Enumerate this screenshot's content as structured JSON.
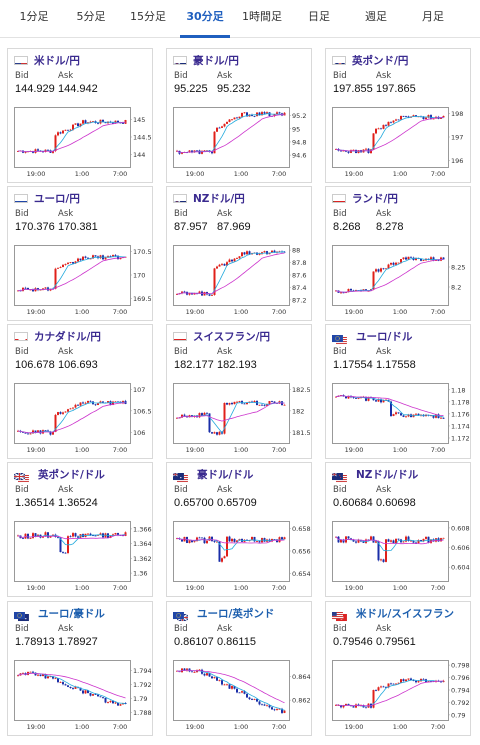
{
  "tabs": [
    {
      "label": "1分足",
      "active": false
    },
    {
      "label": "5分足",
      "active": false
    },
    {
      "label": "15分足",
      "active": false
    },
    {
      "label": "30分足",
      "active": true
    },
    {
      "label": "1時間足",
      "active": false
    },
    {
      "label": "日足",
      "active": false
    },
    {
      "label": "週足",
      "active": false
    },
    {
      "label": "月足",
      "active": false
    }
  ],
  "labels": {
    "bid": "Bid",
    "ask": "Ask"
  },
  "x_ticks": [
    "19:00",
    "1:00",
    "7:00"
  ],
  "cards": [
    {
      "pair": "米ドル/円",
      "flag": "us",
      "bid": "144.929",
      "ask": "144.942",
      "ticks": [
        "145",
        "144.5",
        "144"
      ],
      "range": [
        143.7,
        145.3
      ],
      "base": 144.1,
      "last": 144.93,
      "trend": "jump_up",
      "color": "purple"
    },
    {
      "pair": "豪ドル/円",
      "flag": "au",
      "bid": "95.225",
      "ask": "95.232",
      "ticks": [
        "95.2",
        "95",
        "94.8",
        "94.6"
      ],
      "range": [
        94.45,
        95.3
      ],
      "base": 94.65,
      "last": 95.22,
      "trend": "jump_up",
      "color": "purple"
    },
    {
      "pair": "英ポンド/円",
      "flag": "gb",
      "bid": "197.855",
      "ask": "197.865",
      "ticks": [
        "198",
        "197",
        "196"
      ],
      "range": [
        195.8,
        198.2
      ],
      "base": 196.4,
      "last": 197.86,
      "trend": "jump_up",
      "color": "purple"
    },
    {
      "pair": "ユーロ/円",
      "flag": "eu",
      "bid": "170.376",
      "ask": "170.381",
      "ticks": [
        "170.5",
        "170",
        "169.5"
      ],
      "range": [
        169.4,
        170.6
      ],
      "base": 169.7,
      "last": 170.38,
      "trend": "jump_up",
      "color": "purple"
    },
    {
      "pair": "NZドル/円",
      "flag": "nz",
      "bid": "87.957",
      "ask": "87.969",
      "ticks": [
        "88",
        "87.8",
        "87.6",
        "87.4",
        "87.2"
      ],
      "range": [
        87.15,
        88.05
      ],
      "base": 87.3,
      "last": 87.96,
      "trend": "jump_up",
      "color": "purple"
    },
    {
      "pair": "ランド/円",
      "flag": "za",
      "bid": "8.268",
      "ask": "8.278",
      "ticks": [
        "8.25",
        "8.2"
      ],
      "range": [
        8.16,
        8.3
      ],
      "base": 8.19,
      "last": 8.27,
      "trend": "jump_up",
      "color": "purple"
    },
    {
      "pair": "カナダドル/円",
      "flag": "ca",
      "bid": "106.678",
      "ask": "106.693",
      "ticks": [
        "107",
        "106.5",
        "106"
      ],
      "range": [
        105.8,
        107.1
      ],
      "base": 106.0,
      "last": 106.68,
      "trend": "jump_up",
      "color": "purple"
    },
    {
      "pair": "スイスフラン/円",
      "flag": "ch",
      "bid": "182.177",
      "ask": "182.193",
      "ticks": [
        "182.5",
        "182",
        "181.5"
      ],
      "range": [
        181.3,
        182.6
      ],
      "base": 181.7,
      "last": 182.18,
      "trend": "dip_up",
      "color": "purple"
    },
    {
      "pair": "ユーロ/ドル",
      "flag": "eu_us",
      "bid": "1.17554",
      "ask": "1.17558",
      "ticks": [
        "1.18",
        "1.178",
        "1.176",
        "1.174",
        "1.172"
      ],
      "range": [
        1.1715,
        1.1808
      ],
      "base": 1.179,
      "last": 1.1755,
      "trend": "jump_down",
      "color": "purple"
    },
    {
      "pair": "英ポンド/ドル",
      "flag": "gb_us",
      "bid": "1.36514",
      "ask": "1.36524",
      "ticks": [
        "1.366",
        "1.364",
        "1.362",
        "1.36"
      ],
      "range": [
        1.3592,
        1.3668
      ],
      "base": 1.3645,
      "last": 1.3651,
      "trend": "flat_dip",
      "color": "purple"
    },
    {
      "pair": "豪ドル/ドル",
      "flag": "au_us",
      "bid": "0.65700",
      "ask": "0.65709",
      "ticks": [
        "0.658",
        "0.656",
        "0.654"
      ],
      "range": [
        0.6535,
        0.6585
      ],
      "base": 0.6575,
      "last": 0.657,
      "trend": "flat_dip",
      "color": "purple"
    },
    {
      "pair": "NZドル/ドル",
      "flag": "nz_us",
      "bid": "0.60684",
      "ask": "0.60698",
      "ticks": [
        "0.608",
        "0.606",
        "0.604"
      ],
      "range": [
        0.6028,
        0.6085
      ],
      "base": 0.6075,
      "last": 0.6068,
      "trend": "flat_dip",
      "color": "purple"
    },
    {
      "pair": "ユーロ/豪ドル",
      "flag": "eu_au",
      "bid": "1.78913",
      "ask": "1.78927",
      "ticks": [
        "1.794",
        "1.792",
        "1.79",
        "1.788"
      ],
      "range": [
        1.7872,
        1.7952
      ],
      "base": 1.7935,
      "last": 1.7891,
      "trend": "drop",
      "color": "blue"
    },
    {
      "pair": "ユーロ/英ポンド",
      "flag": "eu_gb",
      "bid": "0.86107",
      "ask": "0.86115",
      "ticks": [
        "0.864",
        "0.862"
      ],
      "range": [
        0.8605,
        0.8652
      ],
      "base": 0.8645,
      "last": 0.8611,
      "trend": "drop",
      "color": "blue"
    },
    {
      "pair": "米ドル/スイスフラン",
      "flag": "us_ch",
      "bid": "0.79546",
      "ask": "0.79561",
      "ticks": [
        "0.798",
        "0.796",
        "0.794",
        "0.792",
        "0.79"
      ],
      "range": [
        0.7895,
        0.7985
      ],
      "base": 0.7915,
      "last": 0.7955,
      "trend": "jump_up",
      "color": "blue"
    }
  ]
}
